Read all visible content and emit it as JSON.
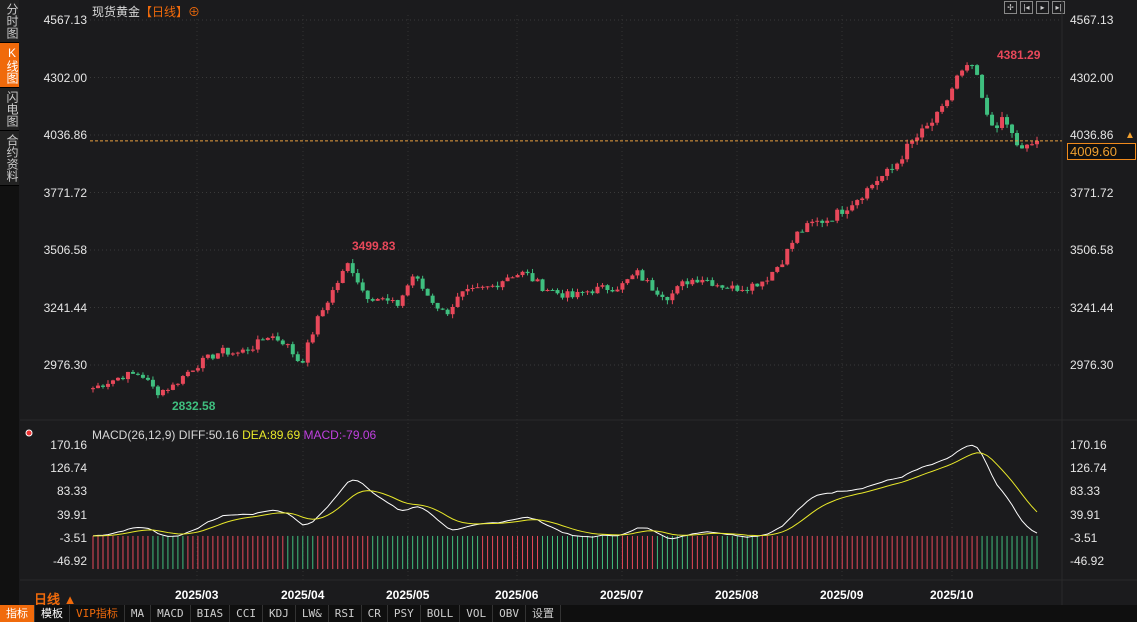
{
  "sidebar": {
    "tabs": [
      {
        "label": "分时图"
      },
      {
        "label": "K线图",
        "active": true
      },
      {
        "label": "闪电图"
      },
      {
        "label": "合约资料"
      }
    ]
  },
  "header": {
    "title": "现货黄金",
    "period": "【日线】",
    "tools": [
      "crosshair",
      "prev",
      "play",
      "next"
    ]
  },
  "price_axis": [
    "4567.13",
    "4302.00",
    "4036.86",
    "3771.72",
    "3506.58",
    "3241.44",
    "2976.30"
  ],
  "current_price": "4009.60",
  "annotations": {
    "high": "4381.29",
    "high2": "3499.83",
    "low": "2832.58"
  },
  "macd": {
    "label": "MACD(26,12,9)",
    "diff": "DIFF:50.16",
    "dea": "DEA:89.69",
    "macd": "MACD:-79.06",
    "axis": [
      "170.16",
      "126.74",
      "83.33",
      "39.91",
      "-3.51",
      "-46.92"
    ]
  },
  "dates": [
    "2025/03",
    "2025/04",
    "2025/05",
    "2025/06",
    "2025/07",
    "2025/08",
    "2025/09",
    "2025/10"
  ],
  "period_label": "日线 ▲",
  "toolbar": [
    "指标",
    "模板",
    "VIP指标",
    "MA",
    "MACD",
    "BIAS",
    "CCI",
    "KDJ",
    "LW&",
    "RSI",
    "CR",
    "PSY",
    "BOLL",
    "VOL",
    "OBV",
    "设置"
  ],
  "colors": {
    "up": "#e8485a",
    "down": "#3fbf7f",
    "accent": "#f06a0b",
    "dea": "#e8e82a",
    "macd": "#c040e0"
  },
  "chart_data": {
    "type": "candlestick",
    "ylim": [
      2976.3,
      4567.13
    ],
    "anchors": [
      2870,
      2900,
      2930,
      2935,
      2850,
      2880,
      2950,
      3000,
      3040,
      3030,
      3060,
      3115,
      3080,
      2980,
      3180,
      3320,
      3450,
      3300,
      3280,
      3250,
      3390,
      3290,
      3210,
      3300,
      3320,
      3340,
      3390,
      3400,
      3340,
      3310,
      3290,
      3320,
      3330,
      3340,
      3400,
      3330,
      3290,
      3360,
      3380,
      3350,
      3330,
      3340,
      3370,
      3450,
      3580,
      3630,
      3650,
      3700,
      3760,
      3830,
      3880,
      3990,
      4060,
      4140,
      4300,
      4360,
      4080,
      4100,
      3960,
      4009.6
    ]
  }
}
